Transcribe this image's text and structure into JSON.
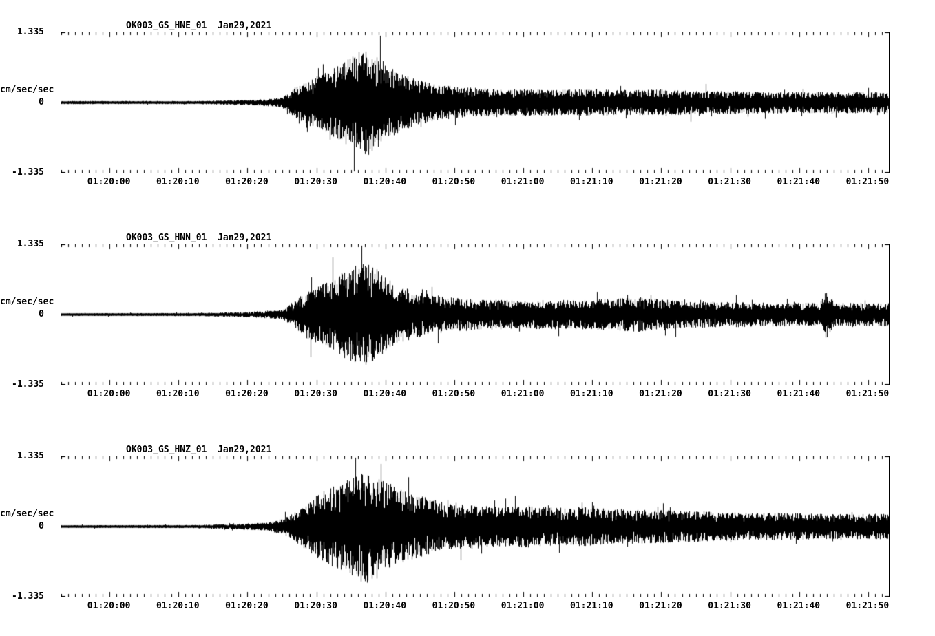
{
  "accent_colors": {
    "trace": "#000000",
    "background": "#ffffff"
  },
  "chart_data": [
    {
      "type": "line",
      "title": "OK003_GS_HNE_01  Jan29,2021",
      "ylabel": "cm/sec/sec",
      "ylim": [
        -1.335,
        1.335
      ],
      "y_tick_labels": [
        "1.335",
        "0",
        "-1.335"
      ],
      "y_tick_values": [
        1.335,
        0,
        -1.335
      ],
      "x_span_sec": 120,
      "x_tick_labels": [
        "01:20:00",
        "01:20:10",
        "01:20:20",
        "01:20:30",
        "01:20:40",
        "01:20:50",
        "01:21:00",
        "01:21:10",
        "01:21:20",
        "01:21:30",
        "01:21:40",
        "01:21:50"
      ],
      "x_tick_seconds": [
        7,
        17,
        27,
        37,
        47,
        57,
        67,
        77,
        87,
        97,
        107,
        117
      ],
      "grid": false,
      "legend": "none",
      "signal_description": "seismic acceleration waveform, symmetric about 0; amplitude envelope (cm/sec/sec) sampled vs seconds from left edge",
      "envelope_t_sec": [
        0,
        20,
        27,
        30,
        32,
        34,
        36,
        38,
        40,
        42,
        44,
        45,
        47,
        49,
        52,
        55,
        58,
        62,
        67,
        72,
        77,
        82,
        87,
        92,
        97,
        102,
        107,
        112,
        117,
        120
      ],
      "envelope_amp": [
        0.03,
        0.03,
        0.05,
        0.07,
        0.1,
        0.3,
        0.45,
        0.55,
        0.7,
        0.85,
        1.05,
        0.95,
        0.75,
        0.55,
        0.42,
        0.33,
        0.3,
        0.26,
        0.26,
        0.24,
        0.26,
        0.24,
        0.25,
        0.22,
        0.22,
        0.21,
        0.2,
        0.21,
        0.2,
        0.2
      ],
      "seed": 101
    },
    {
      "type": "line",
      "title": "OK003_GS_HNN_01  Jan29,2021",
      "ylabel": "cm/sec/sec",
      "ylim": [
        -1.335,
        1.335
      ],
      "y_tick_labels": [
        "1.335",
        "0",
        "-1.335"
      ],
      "y_tick_values": [
        1.335,
        0,
        -1.335
      ],
      "x_span_sec": 120,
      "x_tick_labels": [
        "01:20:00",
        "01:20:10",
        "01:20:20",
        "01:20:30",
        "01:20:40",
        "01:20:50",
        "01:21:00",
        "01:21:10",
        "01:21:20",
        "01:21:30",
        "01:21:40",
        "01:21:50"
      ],
      "x_tick_seconds": [
        7,
        17,
        27,
        37,
        47,
        57,
        67,
        77,
        87,
        97,
        107,
        117
      ],
      "grid": false,
      "legend": "none",
      "signal_description": "seismic acceleration waveform, symmetric about 0; amplitude envelope (cm/sec/sec) sampled vs seconds from left edge; isolated spike near 01:21:44",
      "envelope_t_sec": [
        0,
        20,
        27,
        32,
        34,
        36,
        38,
        40,
        42,
        44,
        46,
        48,
        50,
        53,
        56,
        60,
        65,
        70,
        75,
        80,
        84,
        86,
        88,
        90,
        95,
        100,
        105,
        110,
        111,
        112,
        117,
        120
      ],
      "envelope_amp": [
        0.025,
        0.03,
        0.05,
        0.09,
        0.28,
        0.5,
        0.6,
        0.75,
        0.9,
        1.0,
        0.85,
        0.6,
        0.5,
        0.4,
        0.33,
        0.3,
        0.28,
        0.28,
        0.28,
        0.3,
        0.33,
        0.3,
        0.28,
        0.26,
        0.24,
        0.24,
        0.22,
        0.22,
        0.5,
        0.22,
        0.22,
        0.22
      ],
      "seed": 202
    },
    {
      "type": "line",
      "title": "OK003_GS_HNZ_01  Jan29,2021",
      "ylabel": "cm/sec/sec",
      "ylim": [
        -1.335,
        1.335
      ],
      "y_tick_labels": [
        "1.335",
        "0",
        "-1.335"
      ],
      "y_tick_values": [
        1.335,
        0,
        -1.335
      ],
      "x_span_sec": 120,
      "x_tick_labels": [
        "01:20:00",
        "01:20:10",
        "01:20:20",
        "01:20:30",
        "01:20:40",
        "01:20:50",
        "01:21:00",
        "01:21:10",
        "01:21:20",
        "01:21:30",
        "01:21:40",
        "01:21:50"
      ],
      "x_tick_seconds": [
        7,
        17,
        27,
        37,
        47,
        57,
        67,
        77,
        87,
        97,
        107,
        117
      ],
      "grid": false,
      "legend": "none",
      "signal_description": "seismic acceleration waveform, symmetric about 0; amplitude envelope (cm/sec/sec) sampled vs seconds from left edge; heavier sustained coda",
      "envelope_t_sec": [
        0,
        20,
        27,
        30,
        33,
        35,
        37,
        39,
        41,
        44,
        46,
        48,
        50,
        53,
        56,
        60,
        64,
        68,
        72,
        76,
        80,
        85,
        90,
        95,
        100,
        105,
        110,
        115,
        120
      ],
      "envelope_amp": [
        0.025,
        0.03,
        0.06,
        0.08,
        0.2,
        0.4,
        0.6,
        0.75,
        0.85,
        1.1,
        0.9,
        0.8,
        0.65,
        0.55,
        0.45,
        0.42,
        0.38,
        0.4,
        0.36,
        0.38,
        0.34,
        0.32,
        0.3,
        0.28,
        0.26,
        0.26,
        0.24,
        0.24,
        0.24
      ],
      "seed": 303
    }
  ]
}
